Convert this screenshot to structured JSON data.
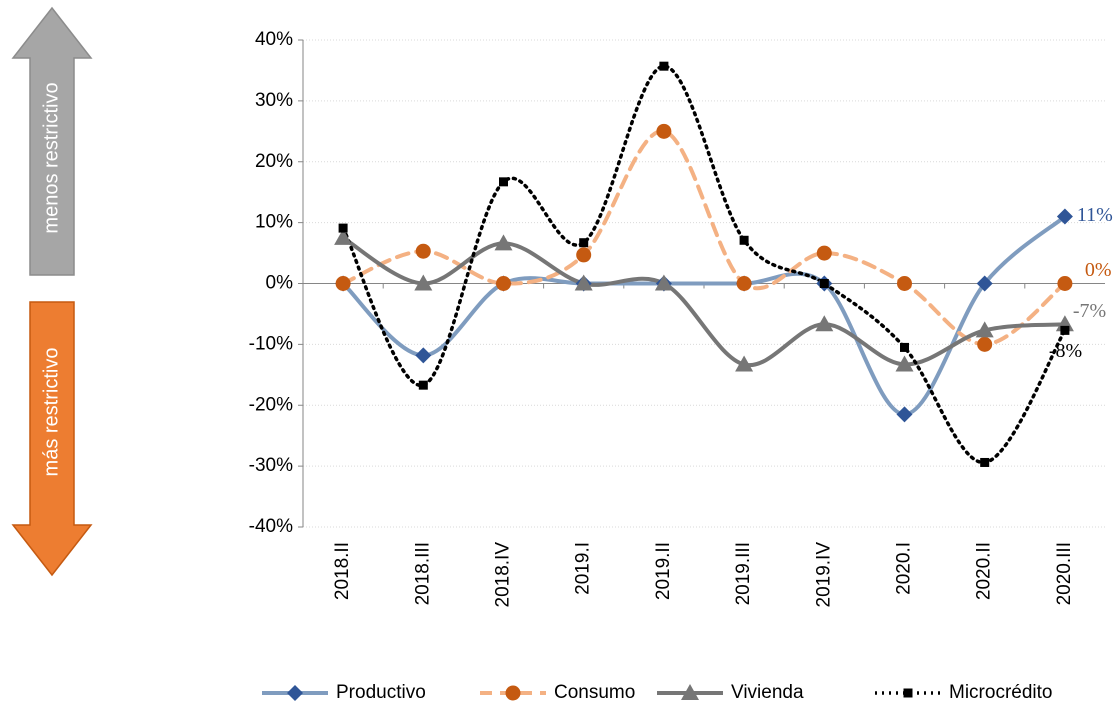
{
  "chart_data": {
    "type": "line",
    "annotations": [
      "menos restrictivo",
      "más restrictivo"
    ],
    "categories": [
      "2018.II",
      "2018.III",
      "2018.IV",
      "2019.I",
      "2019.II",
      "2019.III",
      "2019.IV",
      "2020.I",
      "2020.II",
      "2020.III"
    ],
    "series": [
      {
        "name": "Productivo",
        "color": "#7f9cbf",
        "marker_color": "#2f5597",
        "marker": "diamond",
        "dash": "solid",
        "values": [
          0,
          -11.8,
          0,
          0,
          0,
          0,
          0,
          -21.5,
          0,
          11
        ],
        "value_labels": [
          null,
          null,
          null,
          null,
          null,
          null,
          null,
          null,
          null,
          "11%"
        ]
      },
      {
        "name": "Consumo",
        "color": "#f4b183",
        "marker_color": "#c55a11",
        "marker": "circle",
        "dash": "dashed",
        "values": [
          0,
          5.3,
          0,
          4.7,
          25,
          0,
          5,
          0,
          -10,
          0
        ],
        "value_labels": [
          null,
          null,
          null,
          null,
          null,
          null,
          null,
          null,
          null,
          "0%"
        ]
      },
      {
        "name": "Vivienda",
        "color": "#767676",
        "marker_color": "#767676",
        "marker": "triangle",
        "dash": "solid",
        "values": [
          7.5,
          0,
          6.6,
          0,
          0,
          -13.3,
          -6.7,
          -13.3,
          -7.7,
          -6.7
        ],
        "value_labels": [
          null,
          null,
          null,
          null,
          null,
          null,
          null,
          null,
          null,
          "-7%"
        ]
      },
      {
        "name": "Microcrédito",
        "color": "#000000",
        "marker_color": "#000000",
        "marker": "square",
        "dash": "dotted",
        "values": [
          9.1,
          -16.7,
          16.7,
          6.7,
          35.7,
          7.1,
          0,
          -10.5,
          -29.4,
          -7.7
        ],
        "value_labels": [
          null,
          null,
          null,
          null,
          null,
          null,
          null,
          null,
          null,
          "-8%"
        ]
      }
    ],
    "ylim": [
      -40,
      40
    ],
    "yticks": [
      {
        "value": -40,
        "label": "-40%"
      },
      {
        "value": -30,
        "label": "-30%"
      },
      {
        "value": -20,
        "label": "-20%"
      },
      {
        "value": -10,
        "label": "-10%"
      },
      {
        "value": 0,
        "label": "0%"
      },
      {
        "value": 10,
        "label": "10%"
      },
      {
        "value": 20,
        "label": "20%"
      },
      {
        "value": 30,
        "label": "30%"
      },
      {
        "value": 40,
        "label": "40%"
      }
    ],
    "grid": true,
    "smooth": true,
    "legend": "bottom"
  }
}
